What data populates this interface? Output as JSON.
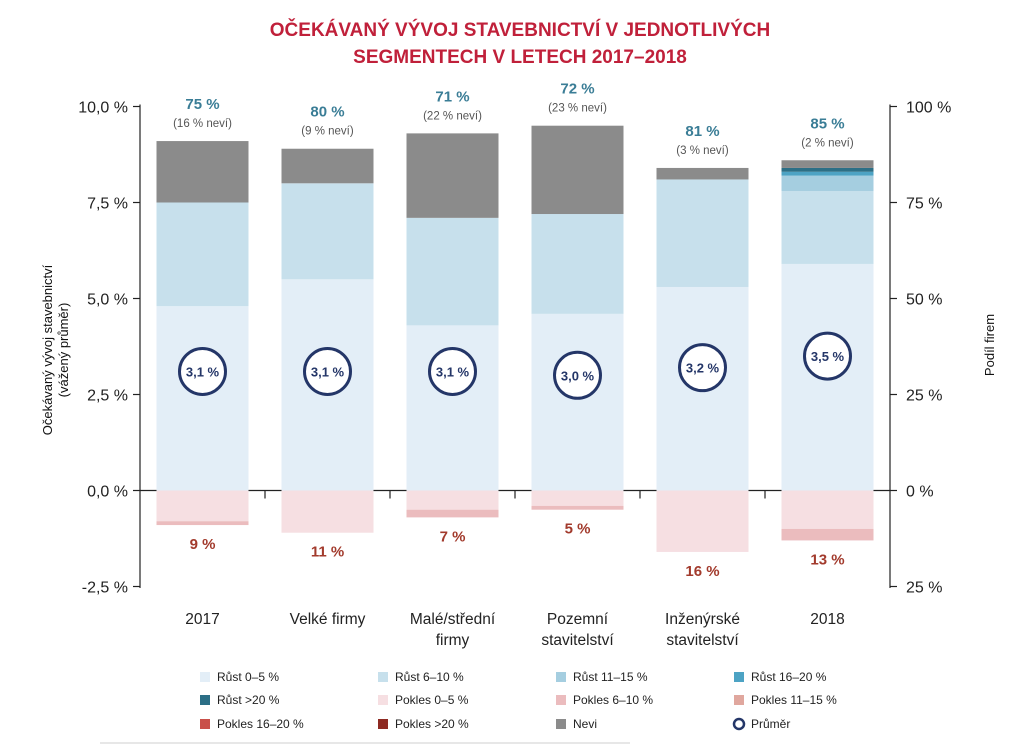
{
  "chart_data": {
    "type": "bar",
    "stacked": true,
    "title_lines": [
      "OČEKÁVANÝ VÝVOJ STAVEBNICTVÍ V JEDNOTLIVÝCH",
      "SEGMENTECH V LETECH 2017–2018"
    ],
    "ylabel_lines": [
      "Očekávaný vývoj stavebnictví",
      "(vážený průměr)"
    ],
    "ylabel_right": "Podíl firem",
    "left_axis": {
      "ylim": [
        -2.5,
        10.0
      ],
      "ticks": [
        10.0,
        7.5,
        5.0,
        2.5,
        0.0,
        -2.5
      ],
      "tick_labels": [
        "10,0 %",
        "7,5 %",
        "5,0 %",
        "2,5 %",
        "0,0 %",
        "-2,5 %"
      ]
    },
    "right_axis": {
      "ylim": [
        -25,
        100
      ],
      "ticks": [
        100,
        75,
        50,
        25,
        0,
        -25
      ],
      "tick_labels": [
        "100 %",
        "75 %",
        "50 %",
        "25 %",
        "0 %",
        "25 %"
      ]
    },
    "grid": false,
    "legend_position": "bottom",
    "categories": [
      {
        "lines": [
          "2017"
        ]
      },
      {
        "lines": [
          "Velké firmy"
        ]
      },
      {
        "lines": [
          "Malé/střední",
          "firmy"
        ]
      },
      {
        "lines": [
          "Pozemní",
          "stavitelství"
        ]
      },
      {
        "lines": [
          "Inženýrské",
          "stavitelství"
        ]
      },
      {
        "lines": [
          "2018"
        ]
      }
    ],
    "series": [
      {
        "name": "Růst 0–5 %",
        "color": "#e3eef7",
        "values": [
          48,
          55,
          43,
          46,
          53,
          59
        ]
      },
      {
        "name": "Růst 6–10 %",
        "color": "#c7e0ec",
        "values": [
          27,
          25,
          28,
          26,
          28,
          19
        ]
      },
      {
        "name": "Růst 11–15 %",
        "color": "#a5cee0",
        "values": [
          0,
          0,
          0,
          0,
          0,
          4
        ]
      },
      {
        "name": "Růst 16–20 %",
        "color": "#4da3c4",
        "values": [
          0,
          0,
          0,
          0,
          0,
          1
        ]
      },
      {
        "name": "Růst >20 %",
        "color": "#2c6f86",
        "values": [
          0,
          0,
          0,
          0,
          0,
          1
        ]
      },
      {
        "name": "Nevi",
        "color": "#8b8b8b",
        "values": [
          16,
          9,
          22,
          23,
          3,
          2
        ]
      },
      {
        "name": "Pokles 0–5 %",
        "color": "#f6dfe2",
        "values": [
          -8,
          -11,
          -5,
          -4,
          -16,
          -10
        ]
      },
      {
        "name": "Pokles 6–10 %",
        "color": "#ebbcbe",
        "values": [
          -1,
          0,
          -2,
          -1,
          0,
          -3
        ]
      },
      {
        "name": "Pokles 11–15 %",
        "color": "#e0a79e",
        "values": [
          0,
          0,
          0,
          0,
          0,
          0
        ]
      },
      {
        "name": "Pokles 16–20 %",
        "color": "#c9504a",
        "values": [
          0,
          0,
          0,
          0,
          0,
          0
        ]
      },
      {
        "name": "Pokles >20 %",
        "color": "#8e2a22",
        "values": [
          0,
          0,
          0,
          0,
          0,
          0
        ]
      }
    ],
    "growth_labels": [
      "75 %",
      "80 %",
      "71 %",
      "72 %",
      "81 %",
      "85 %"
    ],
    "nevi_labels": [
      "(16 % neví)",
      "(9 % neví)",
      "(22 % neví)",
      "(23 % neví)",
      "(3 % neví)",
      "(2 % neví)"
    ],
    "decline_labels": [
      "9 %",
      "11 %",
      "7 %",
      "5 %",
      "16 %",
      "13 %"
    ],
    "averages": [
      3.1,
      3.1,
      3.1,
      3.0,
      3.2,
      3.5
    ],
    "average_labels": [
      "3,1 %",
      "3,1 %",
      "3,1 %",
      "3,0 %",
      "3,2 %",
      "3,5 %"
    ],
    "average_color": "#243668",
    "legend": [
      "Růst 0–5 %",
      "Růst 6–10 %",
      "Růst 11–15 %",
      "Růst 16–20 %",
      "Růst >20 %",
      "Pokles 0–5 %",
      "Pokles 6–10 %",
      "Pokles 11–15 %",
      "Pokles 16–20 %",
      "Pokles >20 %",
      "Nevi",
      "Průměr"
    ]
  }
}
